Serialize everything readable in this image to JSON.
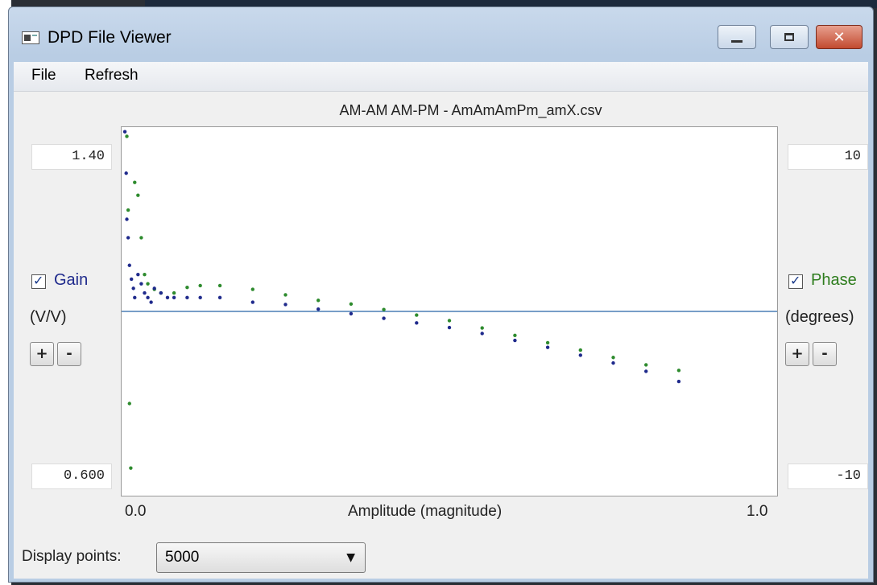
{
  "window": {
    "title": "DPD File Viewer",
    "icon": "app-window-icon"
  },
  "menu": {
    "file": "File",
    "refresh": "Refresh"
  },
  "plot": {
    "title": "AM-AM AM-PM - AmAmAmPm_amX.csv"
  },
  "gain": {
    "max": "1.40",
    "min": "0.600",
    "label": "Gain",
    "checked": true,
    "unit": "(V/V)",
    "plus": "+",
    "minus": "-"
  },
  "phase": {
    "max": "10",
    "min": "-10",
    "label": "Phase",
    "checked": true,
    "unit": "(degrees)",
    "plus": "+",
    "minus": "-"
  },
  "x_axis": {
    "min_label": "0.0",
    "max_label": "1.0",
    "label": "Amplitude (magnitude)"
  },
  "display": {
    "label": "Display points:",
    "value": "5000"
  },
  "colors": {
    "gain_series": "#1f2a8c",
    "phase_series": "#2e8b2e",
    "reference_line": "#4a7fb5"
  },
  "chart_data": {
    "type": "scatter",
    "title": "AM-AM AM-PM - AmAmAmPm_amX.csv",
    "xlabel": "Amplitude (magnitude)",
    "xlim": [
      0.0,
      1.0
    ],
    "y_left": {
      "label": "Gain (V/V)",
      "lim": [
        0.6,
        1.4
      ]
    },
    "y_right": {
      "label": "Phase (degrees)",
      "lim": [
        -10,
        10
      ]
    },
    "reference_line": {
      "axis": "gain",
      "value": 1.0
    },
    "series": [
      {
        "name": "Gain",
        "axis": "left",
        "color": "#1f2a8c",
        "points": [
          [
            0.005,
            1.39
          ],
          [
            0.007,
            1.3
          ],
          [
            0.008,
            1.2
          ],
          [
            0.01,
            1.16
          ],
          [
            0.012,
            1.1
          ],
          [
            0.015,
            1.07
          ],
          [
            0.018,
            1.05
          ],
          [
            0.02,
            1.03
          ],
          [
            0.025,
            1.08
          ],
          [
            0.03,
            1.06
          ],
          [
            0.035,
            1.04
          ],
          [
            0.04,
            1.03
          ],
          [
            0.045,
            1.02
          ],
          [
            0.05,
            1.05
          ],
          [
            0.06,
            1.04
          ],
          [
            0.07,
            1.03
          ],
          [
            0.08,
            1.03
          ],
          [
            0.1,
            1.03
          ],
          [
            0.12,
            1.03
          ],
          [
            0.15,
            1.03
          ],
          [
            0.2,
            1.02
          ],
          [
            0.25,
            1.015
          ],
          [
            0.3,
            1.005
          ],
          [
            0.35,
            0.995
          ],
          [
            0.4,
            0.985
          ],
          [
            0.45,
            0.975
          ],
          [
            0.5,
            0.965
          ],
          [
            0.55,
            0.952
          ],
          [
            0.6,
            0.937
          ],
          [
            0.65,
            0.922
          ],
          [
            0.7,
            0.905
          ],
          [
            0.75,
            0.888
          ],
          [
            0.8,
            0.87
          ],
          [
            0.85,
            0.848
          ]
        ]
      },
      {
        "name": "Phase",
        "axis": "right",
        "color": "#2e8b2e",
        "points": [
          [
            0.008,
            9.5
          ],
          [
            0.01,
            5.5
          ],
          [
            0.012,
            -5.0
          ],
          [
            0.014,
            -8.5
          ],
          [
            0.02,
            7.0
          ],
          [
            0.025,
            6.3
          ],
          [
            0.03,
            4.0
          ],
          [
            0.035,
            2.0
          ],
          [
            0.04,
            1.5
          ],
          [
            0.05,
            1.2
          ],
          [
            0.06,
            1.0
          ],
          [
            0.08,
            1.0
          ],
          [
            0.1,
            1.3
          ],
          [
            0.12,
            1.4
          ],
          [
            0.15,
            1.4
          ],
          [
            0.2,
            1.2
          ],
          [
            0.25,
            0.9
          ],
          [
            0.3,
            0.6
          ],
          [
            0.35,
            0.4
          ],
          [
            0.4,
            0.1
          ],
          [
            0.45,
            -0.2
          ],
          [
            0.5,
            -0.5
          ],
          [
            0.55,
            -0.9
          ],
          [
            0.6,
            -1.3
          ],
          [
            0.65,
            -1.7
          ],
          [
            0.7,
            -2.1
          ],
          [
            0.75,
            -2.5
          ],
          [
            0.8,
            -2.9
          ],
          [
            0.85,
            -3.2
          ]
        ]
      }
    ]
  }
}
